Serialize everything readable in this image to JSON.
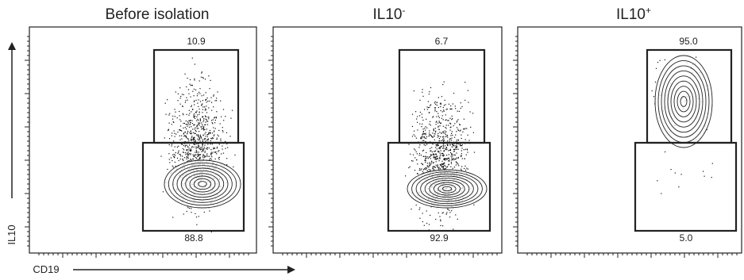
{
  "chart_data": {
    "type": "scatter",
    "description_kind": "flow cytometry dot/contour plots",
    "xlabel": "CD19",
    "ylabel": "IL10",
    "panels": [
      {
        "title_base": "Before isolation",
        "title_sup": "",
        "upper_gate_pct": "10.9",
        "lower_gate_pct": "88.8"
      },
      {
        "title_base": "IL10",
        "title_sup": "-",
        "upper_gate_pct": "6.7",
        "lower_gate_pct": "92.9"
      },
      {
        "title_base": "IL10",
        "title_sup": "+",
        "upper_gate_pct": "95.0",
        "lower_gate_pct": "5.0"
      }
    ]
  }
}
